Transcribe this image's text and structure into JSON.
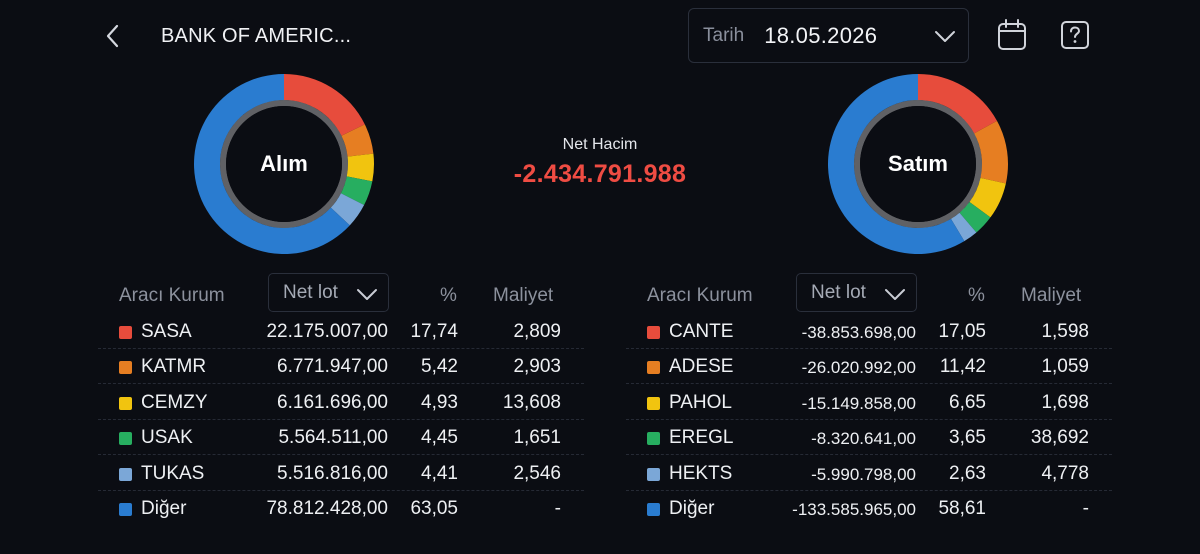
{
  "header": {
    "title": "BANK OF AMERIC...",
    "date_label": "Tarih",
    "date_value": "18.05.2026"
  },
  "colors": {
    "red": "#e74c3c",
    "orange": "#e67e22",
    "yellow": "#f1c40f",
    "green": "#27ae60",
    "lightblue": "#7ba7d7",
    "blue": "#2a7cd0",
    "negative": "#ef4c43"
  },
  "summary": {
    "net_label": "Net Hacim",
    "net_value": "-2.434.791.988"
  },
  "buy": {
    "donut_label": "Alım",
    "col_broker": "Aracı Kurum",
    "col_select": "Net lot",
    "col_pct": "%",
    "col_cost": "Maliyet",
    "rows": [
      {
        "name": "SASA",
        "lot": "22.175.007,00",
        "pct": "17,74",
        "cost": "2,809",
        "color": "red",
        "pct_num": 17.74
      },
      {
        "name": "KATMR",
        "lot": "6.771.947,00",
        "pct": "5,42",
        "cost": "2,903",
        "color": "orange",
        "pct_num": 5.42
      },
      {
        "name": "CEMZY",
        "lot": "6.161.696,00",
        "pct": "4,93",
        "cost": "13,608",
        "color": "yellow",
        "pct_num": 4.93
      },
      {
        "name": "USAK",
        "lot": "5.564.511,00",
        "pct": "4,45",
        "cost": "1,651",
        "color": "green",
        "pct_num": 4.45
      },
      {
        "name": "TUKAS",
        "lot": "5.516.816,00",
        "pct": "4,41",
        "cost": "2,546",
        "color": "lightblue",
        "pct_num": 4.41
      },
      {
        "name": "Diğer",
        "lot": "78.812.428,00",
        "pct": "63,05",
        "cost": "-",
        "color": "blue",
        "pct_num": 63.05
      }
    ]
  },
  "sell": {
    "donut_label": "Satım",
    "col_broker": "Aracı Kurum",
    "col_select": "Net lot",
    "col_pct": "%",
    "col_cost": "Maliyet",
    "rows": [
      {
        "name": "CANTE",
        "lot": "-38.853.698,00",
        "pct": "17,05",
        "cost": "1,598",
        "color": "red",
        "pct_num": 17.05
      },
      {
        "name": "ADESE",
        "lot": "-26.020.992,00",
        "pct": "11,42",
        "cost": "1,059",
        "color": "orange",
        "pct_num": 11.42
      },
      {
        "name": "PAHOL",
        "lot": "-15.149.858,00",
        "pct": "6,65",
        "cost": "1,698",
        "color": "yellow",
        "pct_num": 6.65
      },
      {
        "name": "EREGL",
        "lot": "-8.320.641,00",
        "pct": "3,65",
        "cost": "38,692",
        "color": "green",
        "pct_num": 3.65
      },
      {
        "name": "HEKTS",
        "lot": "-5.990.798,00",
        "pct": "2,63",
        "cost": "4,778",
        "color": "lightblue",
        "pct_num": 2.63
      },
      {
        "name": "Diğer",
        "lot": "-133.585.965,00",
        "pct": "58,61",
        "cost": "-",
        "color": "blue",
        "pct_num": 58.61
      }
    ]
  }
}
